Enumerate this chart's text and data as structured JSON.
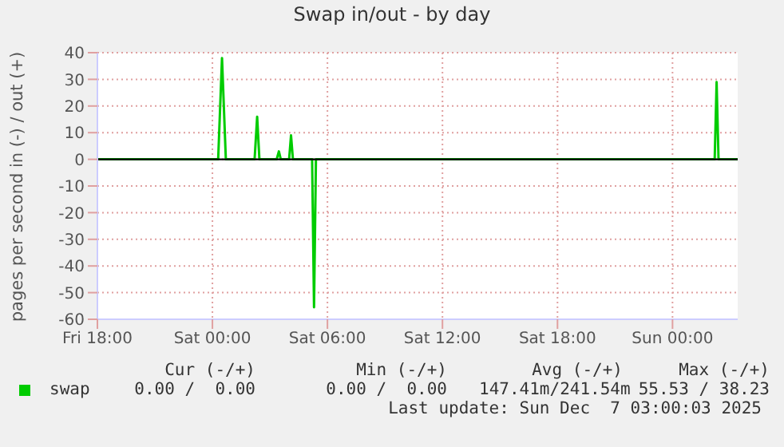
{
  "chart_data": {
    "type": "line",
    "title": "Swap in/out - by day",
    "ylabel": "pages per second in (-) / out (+)",
    "x": [
      "2025-12-05T18:00",
      "2025-12-06T00:18",
      "2025-12-06T00:30",
      "2025-12-06T00:42",
      "2025-12-06T02:12",
      "2025-12-06T02:20",
      "2025-12-06T02:27",
      "2025-12-06T03:21",
      "2025-12-06T03:28",
      "2025-12-06T03:34",
      "2025-12-06T04:00",
      "2025-12-06T04:06",
      "2025-12-06T04:12",
      "2025-12-06T05:12",
      "2025-12-06T05:18",
      "2025-12-06T05:24",
      "2025-12-07T02:12",
      "2025-12-07T02:18",
      "2025-12-07T02:24",
      "2025-12-07T03:24"
    ],
    "series": [
      {
        "name": "swap",
        "color": "#00cc00",
        "values": [
          0,
          0,
          38,
          0,
          0,
          16,
          0,
          0,
          3,
          0,
          0,
          9,
          0,
          0,
          -55.5,
          0,
          0,
          29,
          0,
          0
        ]
      }
    ],
    "xlim": [
      "2025-12-05T18:00",
      "2025-12-07T03:24"
    ],
    "xticks": [
      {
        "value": "2025-12-05T18:00",
        "label": "Fri 18:00"
      },
      {
        "value": "2025-12-06T00:00",
        "label": "Sat 00:00"
      },
      {
        "value": "2025-12-06T06:00",
        "label": "Sat 06:00"
      },
      {
        "value": "2025-12-06T12:00",
        "label": "Sat 12:00"
      },
      {
        "value": "2025-12-06T18:00",
        "label": "Sat 18:00"
      },
      {
        "value": "2025-12-07T00:00",
        "label": "Sun 00:00"
      }
    ],
    "ylim": [
      -60,
      40
    ],
    "yticks": [
      -60,
      -50,
      -40,
      -30,
      -20,
      -10,
      0,
      10,
      20,
      30,
      40
    ],
    "ref_lines": [
      {
        "axis": "y",
        "value": 0,
        "color": "#000000"
      }
    ],
    "grid": true,
    "legend": "bottom",
    "marker": "none",
    "line_style": "solid",
    "annotations": [
      "Cur (-/+)",
      "Min (-/+)",
      "Avg (-/+)",
      "Max (-/+)",
      "0.00 /  0.00",
      "0.00 /  0.00",
      "147.41m/241.54m",
      "55.53 / 38.23",
      "Last update: Sun Dec  7 03:00:03 2025"
    ]
  }
}
